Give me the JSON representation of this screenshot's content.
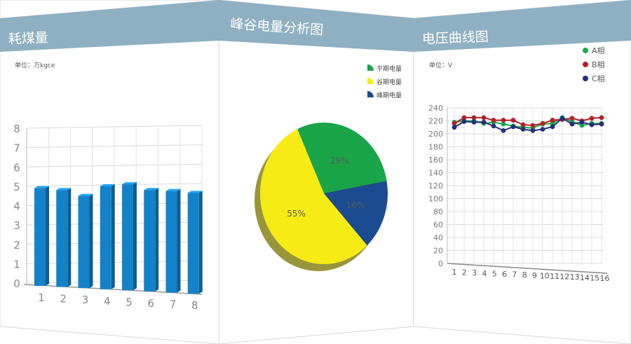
{
  "panels": {
    "coal": {
      "title": "耗煤量",
      "unit": "单位：万kgce"
    },
    "pie": {
      "title": "峰谷电量分析图"
    },
    "voltage": {
      "title": "电压曲线图",
      "unit": "单位：V"
    }
  },
  "colors": {
    "header": "#8fb0c2",
    "bar": "#1383c9",
    "pie_flat": "#1aa548",
    "pie_valley": "#f6eb14",
    "pie_peak": "#1b4b90",
    "phase_a": "#1aab4b",
    "phase_b": "#b3202a",
    "phase_c": "#23307a"
  },
  "chart_data": [
    {
      "type": "bar",
      "categories": [
        "1",
        "2",
        "3",
        "4",
        "5",
        "6",
        "7",
        "8"
      ],
      "values": [
        4.9,
        4.8,
        4.5,
        5.0,
        5.1,
        4.8,
        4.75,
        4.65
      ],
      "ylim": [
        0,
        8
      ],
      "yticks": [
        "0",
        "1",
        "2",
        "3",
        "4",
        "5",
        "6",
        "7",
        "8"
      ],
      "grid": true
    },
    {
      "type": "pie",
      "labels": [
        "平期电量",
        "谷期电量",
        "峰期电量"
      ],
      "values": [
        29,
        55,
        16
      ],
      "data_labels": [
        "29%",
        "55%",
        "16%"
      ],
      "legend": "top-right"
    },
    {
      "type": "line",
      "x": [
        "1",
        "2",
        "3",
        "4",
        "5",
        "6",
        "7",
        "8",
        "9",
        "10",
        "11",
        "12",
        "13",
        "14",
        "15",
        "16"
      ],
      "ylim": [
        0,
        240
      ],
      "yticks": [
        "0",
        "20",
        "40",
        "60",
        "80",
        "100",
        "120",
        "140",
        "160",
        "180",
        "200",
        "220",
        "240"
      ],
      "grid": true,
      "legend": "top-right",
      "series": [
        {
          "name": "A相",
          "values": [
            218,
            220,
            220,
            216,
            218,
            215,
            212,
            210,
            209,
            215,
            216,
            225,
            219,
            213,
            216,
            216
          ]
        },
        {
          "name": "B相",
          "values": [
            216,
            225,
            225,
            225,
            221,
            221,
            221,
            214,
            213,
            216,
            221,
            222,
            224,
            220,
            224,
            225
          ]
        },
        {
          "name": "C相",
          "values": [
            210,
            219,
            218,
            218,
            212,
            205,
            211,
            207,
            205,
            207,
            211,
            224,
            215,
            218,
            214,
            215
          ]
        }
      ]
    }
  ]
}
